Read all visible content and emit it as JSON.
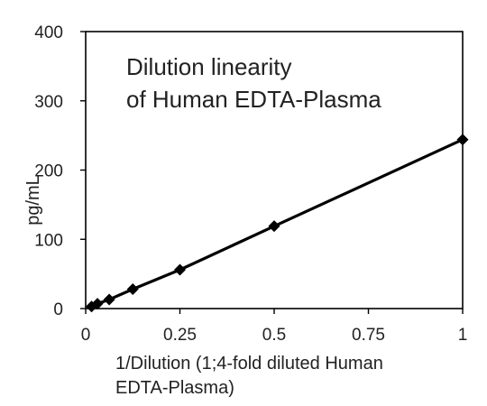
{
  "chart_data": {
    "type": "line",
    "title_lines": [
      "Dilution linearity",
      "of Human  EDTA-Plasma"
    ],
    "xlabel_lines": [
      "1/Dilution (1;4-fold diluted Human",
      "EDTA-Plasma)"
    ],
    "ylabel": "pg/mL",
    "xlim": [
      0,
      1
    ],
    "ylim": [
      0,
      400
    ],
    "x_ticks": [
      0,
      0.25,
      0.5,
      0.75,
      1
    ],
    "x_tick_labels": [
      "0",
      "0.25",
      "0.5",
      "0.75",
      "1"
    ],
    "y_ticks": [
      0,
      100,
      200,
      300,
      400
    ],
    "y_tick_labels": [
      "0",
      "100",
      "200",
      "300",
      "400"
    ],
    "grid": false,
    "legend": "none",
    "marker": "diamond",
    "line_color": "#000000",
    "series": [
      {
        "x": [
          0.015625,
          0.03125,
          0.0625,
          0.125,
          0.25,
          0.5,
          1
        ],
        "y": [
          3,
          7,
          13,
          28,
          56,
          119,
          244
        ]
      }
    ]
  }
}
